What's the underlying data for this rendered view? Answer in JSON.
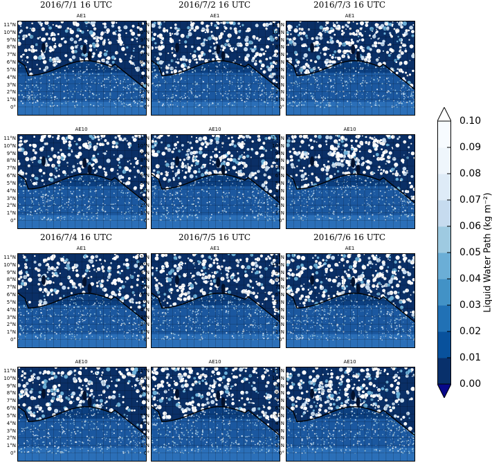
{
  "chart_data": {
    "type": "heatmap",
    "row_titles": [
      "2016/7/1   16 UTC",
      "2016/7/2   16 UTC",
      "2016/7/3   16 UTC",
      "2016/7/4   16 UTC",
      "2016/7/5   16 UTC",
      "2016/7/6   16 UTC"
    ],
    "panels": [
      {
        "date": "2016/7/1",
        "label": "AE1"
      },
      {
        "date": "2016/7/2",
        "label": "AE1"
      },
      {
        "date": "2016/7/3",
        "label": "AE1"
      },
      {
        "date": "2016/7/1",
        "label": "AE10"
      },
      {
        "date": "2016/7/2",
        "label": "AE10"
      },
      {
        "date": "2016/7/3",
        "label": "AE10"
      },
      {
        "date": "2016/7/4",
        "label": "AE1"
      },
      {
        "date": "2016/7/5",
        "label": "AE1"
      },
      {
        "date": "2016/7/6",
        "label": "AE1"
      },
      {
        "date": "2016/7/4",
        "label": "AE10"
      },
      {
        "date": "2016/7/5",
        "label": "AE10"
      },
      {
        "date": "2016/7/6",
        "label": "AE10"
      }
    ],
    "lat_ticks": [
      "11°N",
      "10°N",
      "9°N",
      "8°N",
      "7°N",
      "6°N",
      "5°N",
      "4°N",
      "3°N",
      "2°N",
      "1°N",
      "0°"
    ],
    "colorbar": {
      "label": "Liquid Water Path (kg m⁻²)",
      "ticks": [
        "0.10",
        "0.09",
        "0.08",
        "0.07",
        "0.06",
        "0.05",
        "0.04",
        "0.03",
        "0.02",
        "0.01",
        "0.00"
      ],
      "vmin": 0.0,
      "vmax": 0.1,
      "extend": "both",
      "colors": [
        "#08306b",
        "#08519c",
        "#2171b5",
        "#4292c6",
        "#6baed6",
        "#9ecae1",
        "#c6dbef",
        "#deebf7",
        "#eff6fc",
        "#f7fbff"
      ]
    }
  }
}
